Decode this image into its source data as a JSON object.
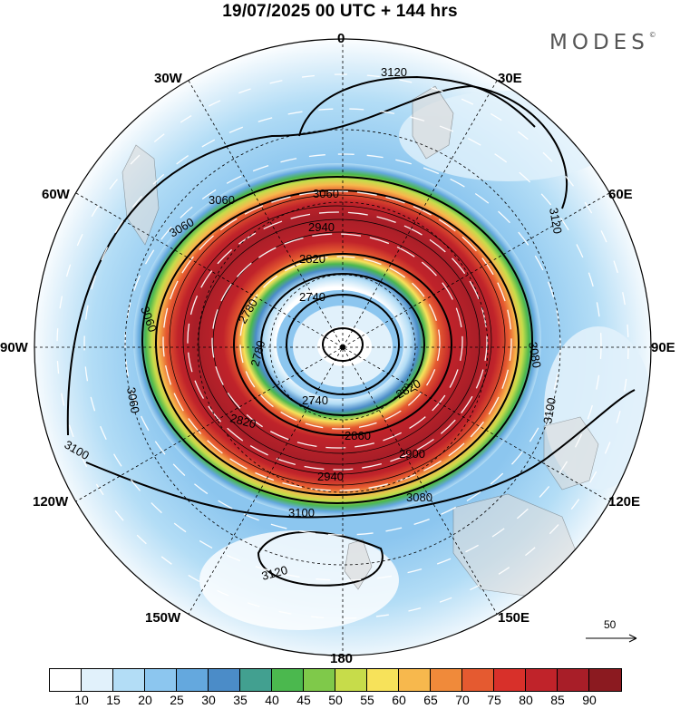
{
  "title": "19/07/2025  00 UTC  + 144 hrs",
  "logo": {
    "text": "MODES",
    "mark": "©"
  },
  "longitude_labels": [
    "0",
    "30E",
    "60E",
    "90E",
    "120E",
    "150E",
    "180",
    "150W",
    "120W",
    "90W",
    "60W",
    "30W"
  ],
  "contour_labels": [
    "2740",
    "2780",
    "2820",
    "2860",
    "2900",
    "2940",
    "3060",
    "3080",
    "3100",
    "3120"
  ],
  "reference_vector": {
    "label": "50"
  },
  "colorbar": {
    "colors": [
      "#ffffff",
      "#e1f1fb",
      "#b3ddf6",
      "#8cc6ef",
      "#64a8de",
      "#4b8cc8",
      "#42a090",
      "#4bb84e",
      "#7fc94a",
      "#c7dc4a",
      "#f7e25a",
      "#f7b84d",
      "#f08a3a",
      "#e55a30",
      "#d8302a",
      "#c0232a",
      "#a81e28",
      "#8b1a20"
    ],
    "labels": [
      "10",
      "15",
      "20",
      "25",
      "30",
      "35",
      "40",
      "45",
      "50",
      "55",
      "60",
      "65",
      "70",
      "75",
      "80",
      "85",
      "90"
    ]
  }
}
